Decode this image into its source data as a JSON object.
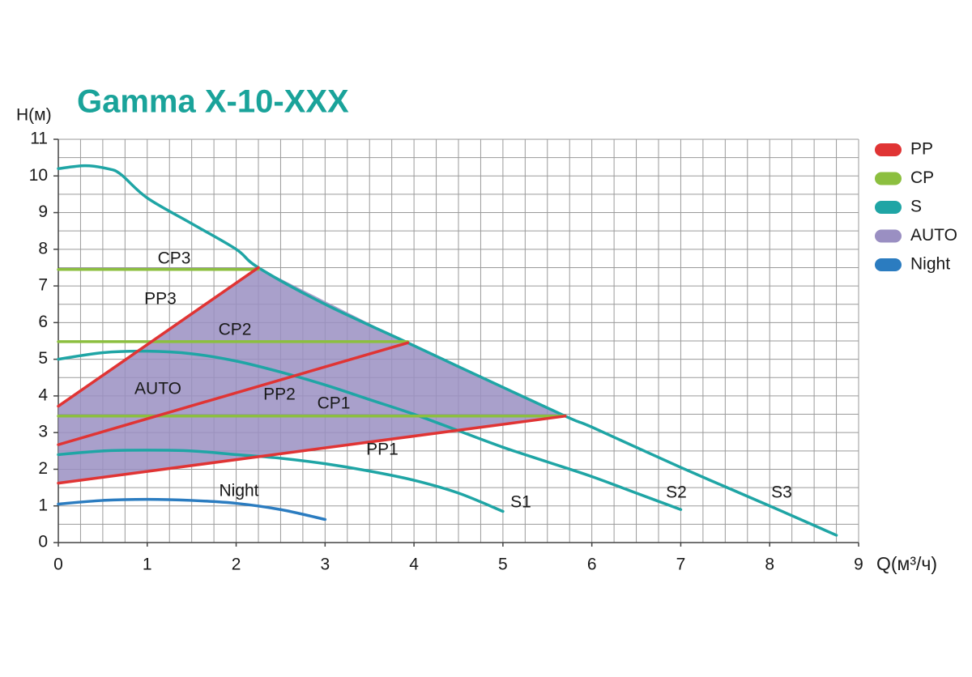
{
  "chart_data": {
    "type": "line",
    "title": "Gamma X-10-XXX",
    "ylabel": "H(м)",
    "xlabel": "Q(м³/ч)",
    "xlim": [
      0,
      9
    ],
    "ylim": [
      0,
      11
    ],
    "xticks": [
      0,
      1,
      2,
      3,
      4,
      5,
      6,
      7,
      8,
      9
    ],
    "yticks": [
      0,
      1,
      2,
      3,
      4,
      5,
      6,
      7,
      8,
      9,
      10,
      11
    ],
    "grid": true,
    "legend": "right",
    "series": [
      {
        "name": "PP",
        "color": "#e03434",
        "curves": [
          {
            "label": "PP1",
            "x": [
              0,
              5.7
            ],
            "values": [
              1.62,
              3.45
            ]
          },
          {
            "label": "PP2",
            "x": [
              0,
              3.93
            ],
            "values": [
              2.67,
              5.45
            ]
          },
          {
            "label": "PP3",
            "x": [
              0,
              2.25
            ],
            "values": [
              3.72,
              7.5
            ]
          }
        ]
      },
      {
        "name": "CP",
        "color": "#8cbf3f",
        "curves": [
          {
            "label": "CP1",
            "x": [
              0,
              5.7
            ],
            "values": [
              3.45,
              3.45
            ]
          },
          {
            "label": "CP2",
            "x": [
              0,
              3.93
            ],
            "values": [
              5.48,
              5.48
            ]
          },
          {
            "label": "CP3",
            "x": [
              0,
              2.25
            ],
            "values": [
              7.45,
              7.45
            ]
          }
        ]
      },
      {
        "name": "S",
        "color": "#1fa5a5",
        "curves": [
          {
            "label": "S1",
            "x": [
              0,
              0.5,
              1,
              1.5,
              2,
              2.5,
              3,
              3.5,
              4,
              4.5,
              5
            ],
            "values": [
              2.4,
              2.5,
              2.52,
              2.5,
              2.4,
              2.3,
              2.15,
              1.95,
              1.7,
              1.35,
              0.85
            ]
          },
          {
            "label": "S2",
            "x": [
              0,
              0.5,
              1,
              1.5,
              2,
              2.5,
              3,
              3.5,
              4,
              4.5,
              5,
              5.5,
              6,
              6.5,
              7
            ],
            "values": [
              5,
              5.18,
              5.22,
              5.15,
              4.95,
              4.65,
              4.3,
              3.9,
              3.5,
              3.05,
              2.6,
              2.2,
              1.8,
              1.35,
              0.9
            ]
          },
          {
            "label": "S3",
            "x": [
              0,
              0.3,
              0.55,
              0.7,
              1,
              1.5,
              2,
              2.25,
              3,
              3.93,
              4.5,
              5.7,
              6,
              7,
              8,
              8.75
            ],
            "values": [
              10.2,
              10.28,
              10.2,
              10.05,
              9.4,
              8.7,
              8.0,
              7.5,
              6.5,
              5.45,
              4.8,
              3.45,
              3.15,
              2.05,
              1.0,
              0.2
            ]
          }
        ]
      },
      {
        "name": "AUTO",
        "color": "#9a8fc2",
        "fill": true,
        "curves": [
          {
            "label": "AUTO",
            "x": [
              0,
              0,
              2.25,
              3.93,
              5.7
            ],
            "values": [
              1.62,
              3.72,
              7.5,
              5.45,
              3.45
            ]
          }
        ]
      },
      {
        "name": "Night",
        "color": "#2b7cc0",
        "curves": [
          {
            "label": "Night",
            "x": [
              0,
              0.5,
              1,
              1.5,
              2,
              2.5,
              3
            ],
            "values": [
              1.05,
              1.15,
              1.18,
              1.15,
              1.07,
              0.9,
              0.63
            ]
          }
        ]
      }
    ]
  }
}
